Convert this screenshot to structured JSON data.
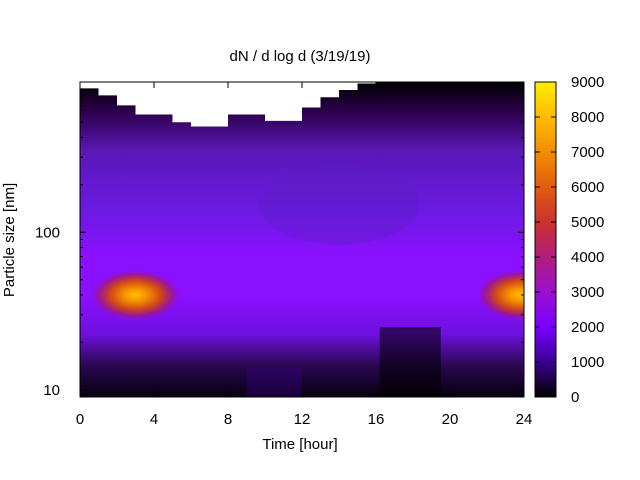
{
  "chart_data": {
    "type": "heatmap",
    "title": "dN / d log d (3/19/19)",
    "xlabel": "Time [hour]",
    "ylabel": "Particle size [nm]",
    "xlim": [
      0,
      24
    ],
    "ylim": [
      9,
      900
    ],
    "yscale": "log",
    "x_ticks": [
      "0",
      "4",
      "8",
      "12",
      "16",
      "20",
      "24"
    ],
    "y_ticks": [
      "10",
      "100"
    ],
    "colorbar": {
      "ticks": [
        "0",
        "1000",
        "2000",
        "3000",
        "4000",
        "5000",
        "6000",
        "7000",
        "8000",
        "9000"
      ],
      "range": [
        0,
        9000
      ],
      "palette": [
        "#000000",
        "#7a00ff",
        "#cc3030",
        "#ff9900",
        "#ffee00"
      ]
    },
    "hotspots": [
      {
        "hour": 3.0,
        "size_nm": 40,
        "value": 8200
      },
      {
        "hour": 23.8,
        "size_nm": 40,
        "value": 7600
      }
    ],
    "upper_size_limit_nm": [
      {
        "hour": 0,
        "size": 820
      },
      {
        "hour": 1,
        "size": 740
      },
      {
        "hour": 2,
        "size": 640
      },
      {
        "hour": 3,
        "size": 560
      },
      {
        "hour": 4,
        "size": 560
      },
      {
        "hour": 5,
        "size": 500
      },
      {
        "hour": 6,
        "size": 470
      },
      {
        "hour": 7,
        "size": 470
      },
      {
        "hour": 8,
        "size": 560
      },
      {
        "hour": 9,
        "size": 560
      },
      {
        "hour": 10,
        "size": 510
      },
      {
        "hour": 11,
        "size": 510
      },
      {
        "hour": 12,
        "size": 620
      },
      {
        "hour": 13,
        "size": 720
      },
      {
        "hour": 14,
        "size": 800
      },
      {
        "hour": 15,
        "size": 880
      },
      {
        "hour": 16,
        "size": 900
      },
      {
        "hour": 17,
        "size": 920
      },
      {
        "hour": 18,
        "size": 940
      },
      {
        "hour": 19,
        "size": 940
      },
      {
        "hour": 20,
        "size": 950
      },
      {
        "hour": 21,
        "size": 950
      },
      {
        "hour": 22,
        "size": 950
      },
      {
        "hour": 23,
        "size": 950
      },
      {
        "hour": 24,
        "size": 950
      }
    ]
  }
}
